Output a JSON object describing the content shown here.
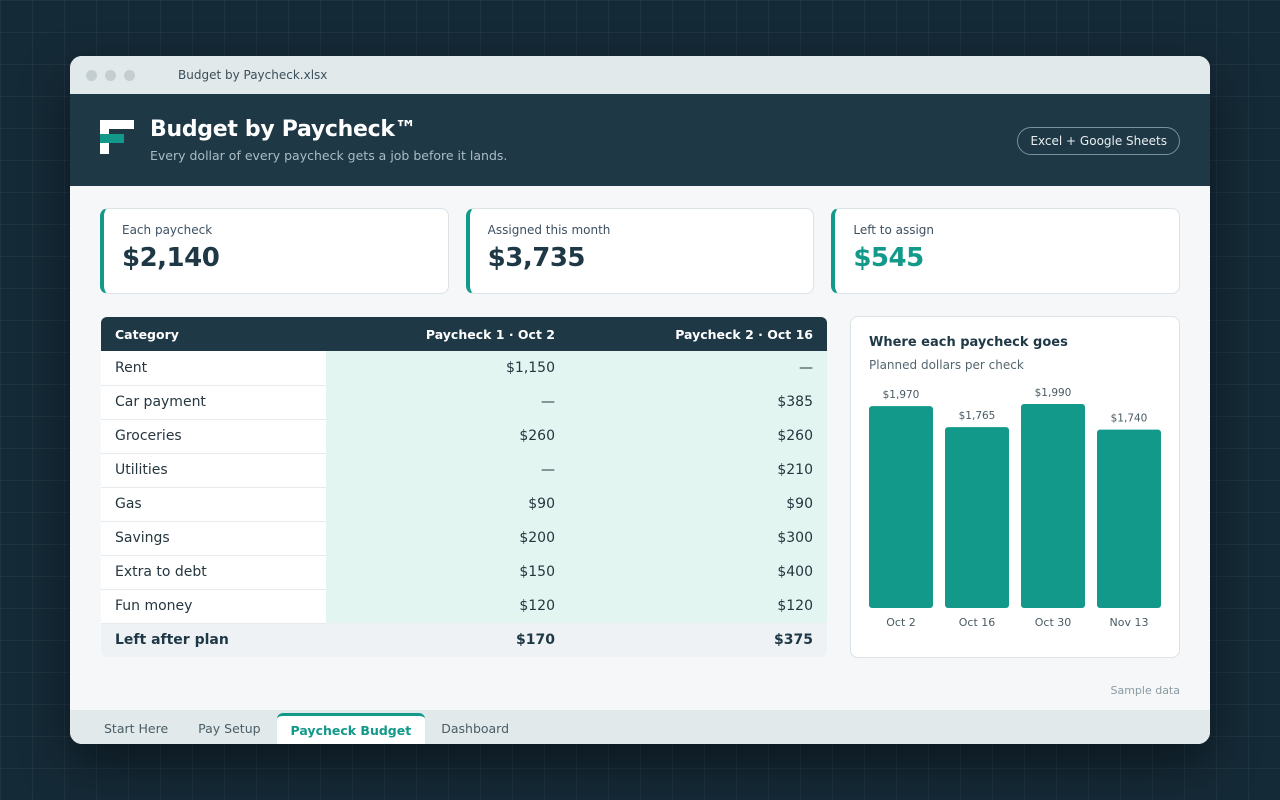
{
  "window": {
    "filename": "Budget by Paycheck.xlsx"
  },
  "header": {
    "title": "Budget by Paycheck™",
    "subtitle": "Every dollar of every paycheck gets a job before it lands.",
    "platform": "Excel + Google Sheets"
  },
  "cards": [
    {
      "label": "Each paycheck",
      "value": "$2,140"
    },
    {
      "label": "Assigned this month",
      "value": "$3,735"
    },
    {
      "label": "Left to assign",
      "value": "$545"
    }
  ],
  "table": {
    "headers": [
      "Category",
      "Paycheck 1 · Oct 2",
      "Paycheck 2 · Oct 16"
    ],
    "rows": [
      {
        "category": "Rent",
        "p1": "$1,150",
        "p2": "—"
      },
      {
        "category": "Car payment",
        "p1": "—",
        "p2": "$385"
      },
      {
        "category": "Groceries",
        "p1": "$260",
        "p2": "$260"
      },
      {
        "category": "Utilities",
        "p1": "—",
        "p2": "$210"
      },
      {
        "category": "Gas",
        "p1": "$90",
        "p2": "$90"
      },
      {
        "category": "Savings",
        "p1": "$200",
        "p2": "$300"
      },
      {
        "category": "Extra to debt",
        "p1": "$150",
        "p2": "$400"
      },
      {
        "category": "Fun money",
        "p1": "$120",
        "p2": "$120"
      }
    ],
    "total": {
      "category": "Left after plan",
      "p1": "$170",
      "p2": "$375"
    }
  },
  "chart_data": {
    "type": "bar",
    "title": "Where each paycheck goes",
    "subtitle": "Planned dollars per check",
    "categories": [
      "Oct 2",
      "Oct 16",
      "Oct 30",
      "Nov 13"
    ],
    "values": [
      1970,
      1765,
      1990,
      1740
    ],
    "value_labels": [
      "$1,970",
      "$1,765",
      "$1,990",
      "$1,740"
    ],
    "ylim": [
      0,
      2000
    ],
    "color": "#12998a",
    "grid": false
  },
  "footer_note": "Sample data",
  "tabs": [
    "Start Here",
    "Pay Setup",
    "Paycheck Budget",
    "Dashboard"
  ],
  "active_tab": "Paycheck Budget",
  "colors": {
    "accent": "#12998a",
    "header": "#1f3846",
    "highlight": "#e2f5f1"
  }
}
